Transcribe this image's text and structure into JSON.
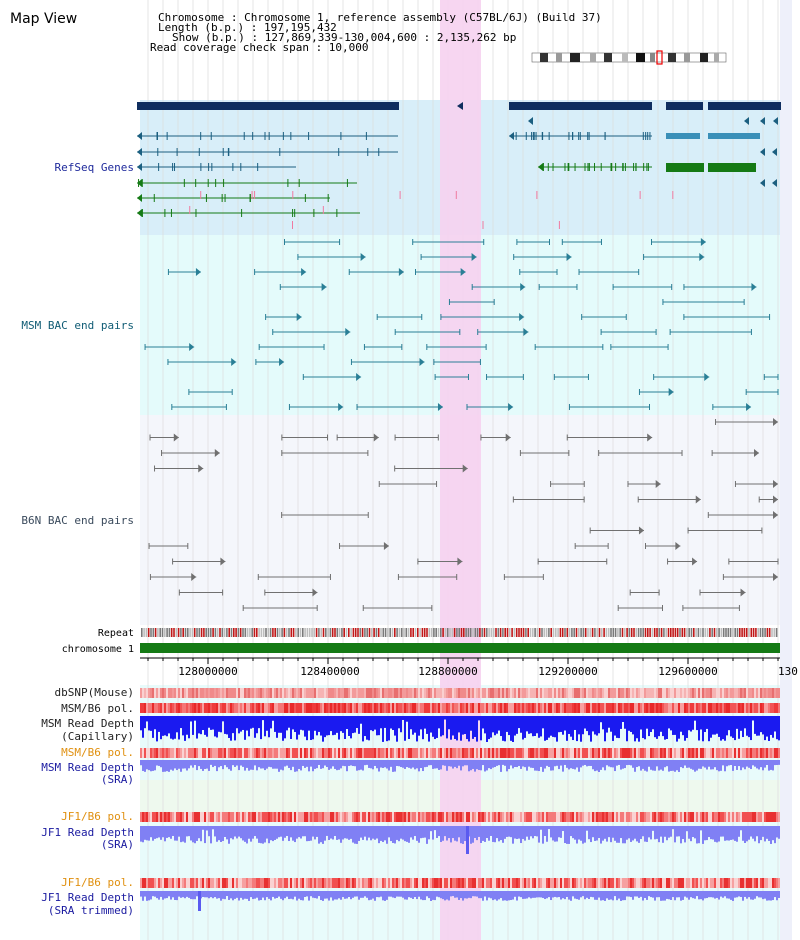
{
  "page": {
    "title": "Map View"
  },
  "header": {
    "lines": [
      "Chromosome     : Chromosome 1, reference assembly (C57BL/6J) (Build 37)",
      "Length (b.p.) : 197,195,432",
      "Show (b.p.) : 127,869,339-130,004,600 : 2,135,262 bp",
      "Read coverage check span : 10,000"
    ]
  },
  "tracks": {
    "refseq": "RefSeq Genes",
    "msm_bac": "MSM BAC end pairs",
    "b6n_bac": "B6N BAC end pairs",
    "repeat": "Repeat",
    "chromosome": "chromosome 1",
    "dbsnp": "dbSNP(Mouse)",
    "msm_b6_pol_1": "MSM/B6 pol.",
    "msm_read_depth_cap_1": "MSM Read Depth",
    "msm_read_depth_cap_2": "(Capillary)",
    "msm_b6_pol_2": "MSM/B6 pol.",
    "msm_read_depth_sra_1": "MSM Read Depth",
    "msm_read_depth_sra_2": "(SRA)",
    "jf1_b6_pol_1": "JF1/B6 pol.",
    "jf1_read_depth_sra_1": "JF1 Read Depth",
    "jf1_read_depth_sra_2": "(SRA)",
    "jf1_b6_pol_2": "JF1/B6 pol.",
    "jf1_read_depth_trim_1": "JF1 Read Depth",
    "jf1_read_depth_trim_2": "(SRA trimmed)"
  },
  "axis": {
    "ticks": [
      "128000000",
      "128400000",
      "128800000",
      "129200000",
      "129600000",
      "130"
    ]
  },
  "colors": {
    "gene_navy": "#0f2e5f",
    "refseq_bg": "#d8eef9",
    "msm_bg": "#e4fbfb",
    "b6n_bg": "#f4f6fb",
    "highlight": "#f6d2f0",
    "chromosome": "#157a15",
    "msm_label": "#0f5b74",
    "b6n_label": "#3a4a5c",
    "depth_blue": "#1a1af0",
    "sra_blue": "#8080f4",
    "pol_label": "#e09010"
  }
}
